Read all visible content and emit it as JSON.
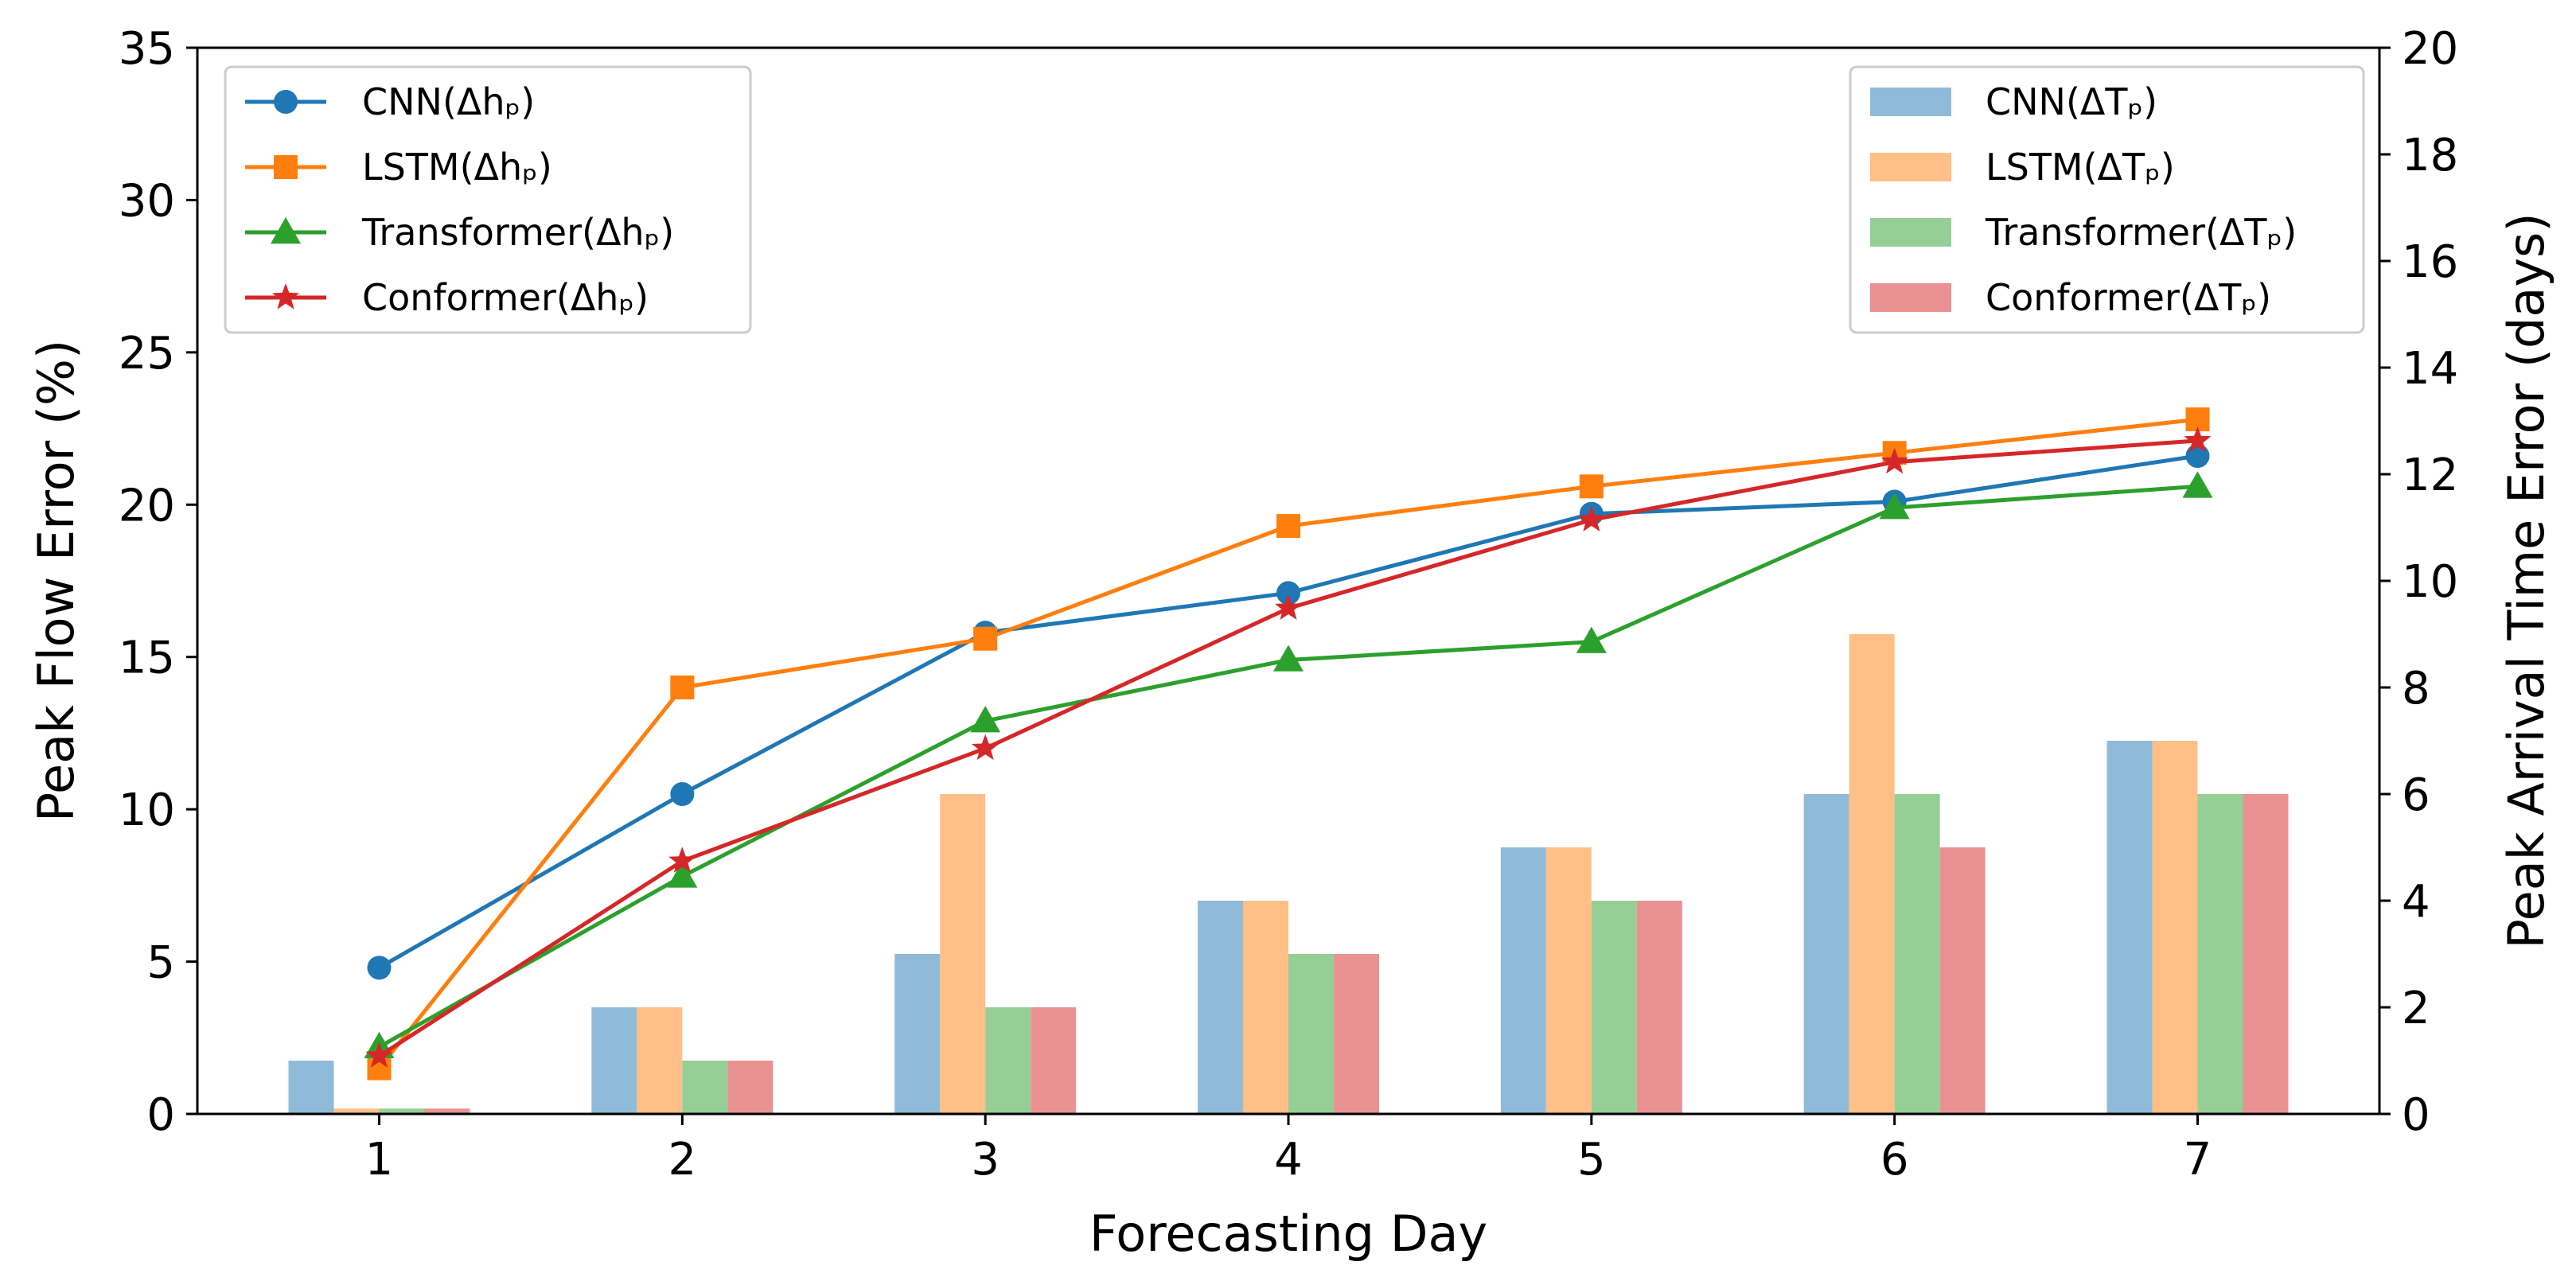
{
  "chart_data": {
    "type": "bar",
    "xlabel": "Forecasting Day",
    "ylabel_left": "Peak Flow Error (%)",
    "ylabel_right": "Peak Arrival Time Error (days)",
    "x": [
      1,
      2,
      3,
      4,
      5,
      6,
      7
    ],
    "x_tick_labels": [
      "1",
      "2",
      "3",
      "4",
      "5",
      "6",
      "7"
    ],
    "ylim_left": [
      0,
      35
    ],
    "ylim_right": [
      0,
      20
    ],
    "y_ticks_left": [
      "0",
      "5",
      "10",
      "15",
      "20",
      "25",
      "30",
      "35"
    ],
    "y_ticks_right": [
      "0",
      "2",
      "4",
      "6",
      "8",
      "10",
      "12",
      "14",
      "16",
      "18",
      "20"
    ],
    "grid": false,
    "line_series": [
      {
        "name": "CNN(Δhₚ)",
        "marker": "circle",
        "color": "#1f77b4",
        "values": [
          4.8,
          10.5,
          15.8,
          17.1,
          19.7,
          20.1,
          21.6
        ]
      },
      {
        "name": "LSTM(Δhₚ)",
        "marker": "square",
        "color": "#ff7f0e",
        "values": [
          1.5,
          14.0,
          15.6,
          19.3,
          20.6,
          21.7,
          22.8
        ]
      },
      {
        "name": "Transformer(Δhₚ)",
        "marker": "triangle",
        "color": "#2ca02c",
        "values": [
          2.2,
          7.8,
          12.9,
          14.9,
          15.5,
          19.9,
          20.6
        ]
      },
      {
        "name": "Conformer(Δhₚ)",
        "marker": "star",
        "color": "#d62728",
        "values": [
          1.9,
          8.3,
          12.0,
          16.6,
          19.5,
          21.4,
          22.1
        ]
      }
    ],
    "bar_series": [
      {
        "name": "CNN(ΔTₚ)",
        "color": "#8fbbd9",
        "values": [
          1,
          2,
          3,
          4,
          5,
          6,
          7
        ]
      },
      {
        "name": "LSTM(ΔTₚ)",
        "color": "#ffbf86",
        "values": [
          0.1,
          2,
          6,
          4,
          5,
          9,
          7
        ]
      },
      {
        "name": "Transformer(ΔTₚ)",
        "color": "#95cf95",
        "values": [
          0.1,
          1,
          2,
          3,
          4,
          6,
          6
        ]
      },
      {
        "name": "Conformer(ΔTₚ)",
        "color": "#ea9293",
        "values": [
          0.1,
          1,
          2,
          3,
          4,
          5,
          6
        ]
      }
    ],
    "legend_left_placement": "top-left",
    "legend_right_placement": "top-right"
  }
}
